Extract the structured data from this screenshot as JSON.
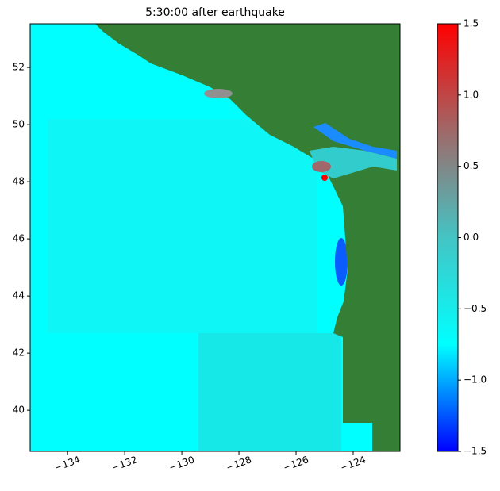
{
  "chart_data": {
    "type": "heatmap",
    "title": "5:30:00 after earthquake",
    "xlim": [
      -135.31,
      -122.36
    ],
    "ylim": [
      38.56,
      53.53
    ],
    "xticks": [
      {
        "value": -134,
        "label": "−134"
      },
      {
        "value": -132,
        "label": "−132"
      },
      {
        "value": -130,
        "label": "−130"
      },
      {
        "value": -128,
        "label": "−128"
      },
      {
        "value": -126,
        "label": "−126"
      },
      {
        "value": -124,
        "label": "−124"
      }
    ],
    "yticks": [
      40,
      42,
      44,
      46,
      48,
      50,
      52
    ],
    "colorbar": {
      "lim": [
        -1.5,
        1.5
      ],
      "ticks": [
        {
          "value": -1.5,
          "label": "−1.5"
        },
        {
          "value": -1.0,
          "label": "−1.0"
        },
        {
          "value": -0.5,
          "label": "−0.5"
        },
        {
          "value": 0.0,
          "label": "0.0"
        },
        0.5,
        {
          "value": 1.0,
          "label": "1.0"
        },
        1.5
      ],
      "colors": [
        "#0000ff",
        "#00ffff",
        "#44c4c4",
        "#a06868",
        "#ff0000"
      ]
    },
    "land_color": "#357e35"
  }
}
